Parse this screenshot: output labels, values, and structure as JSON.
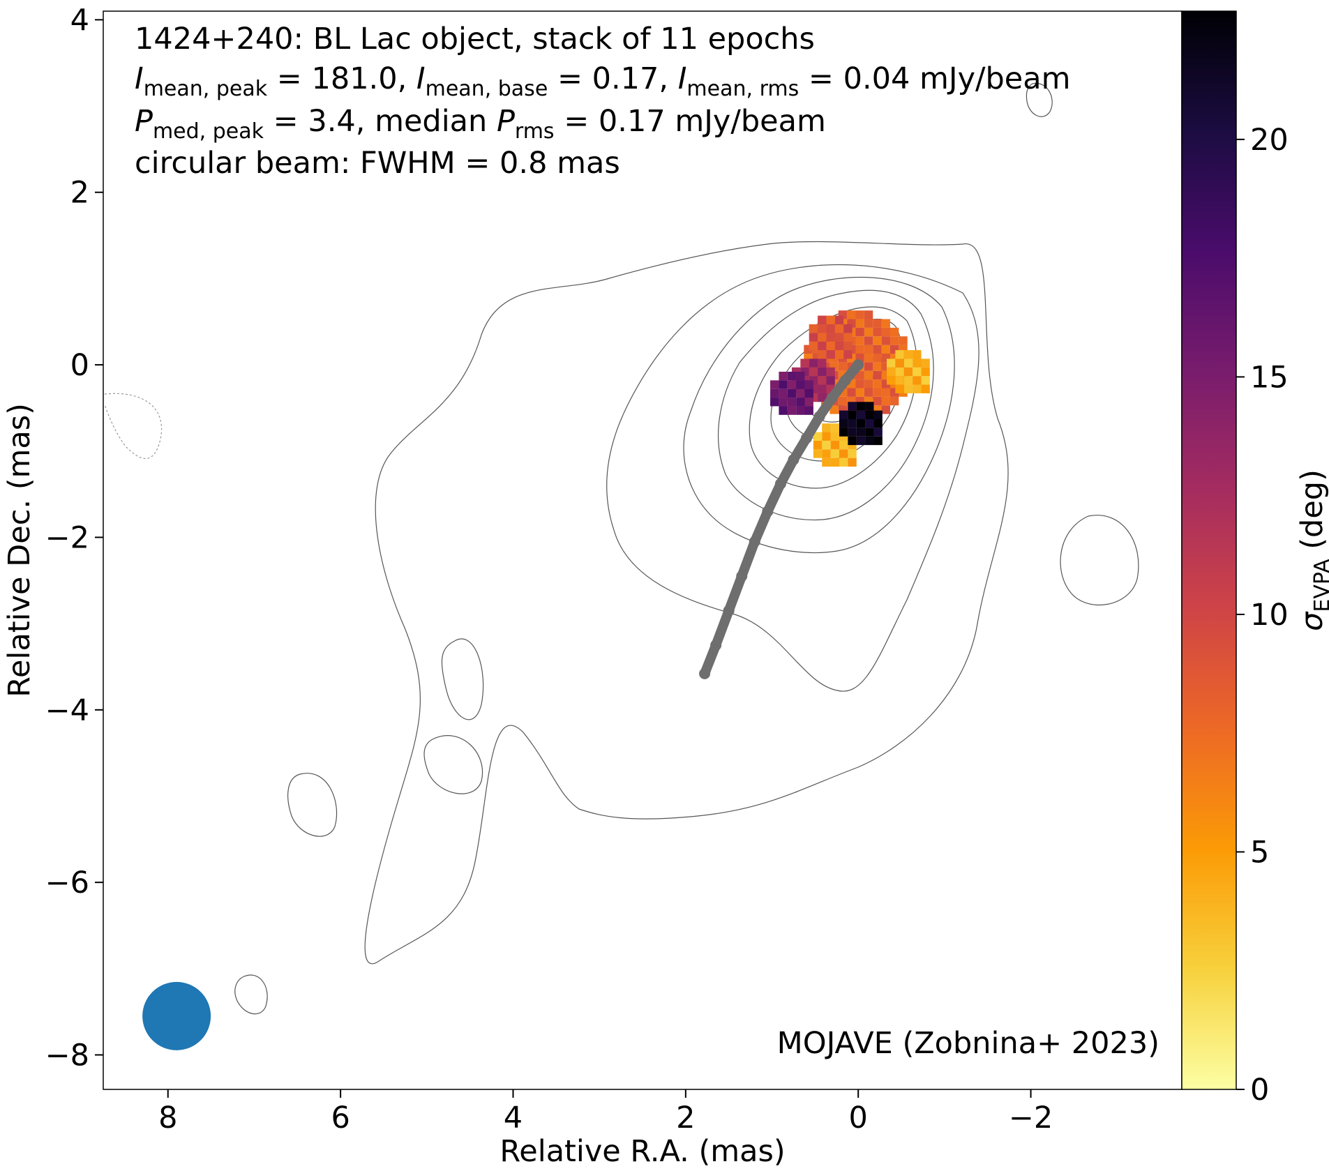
{
  "chart_data": {
    "type": "heatmap",
    "description_fields": {
      "title_lines": [
        "1424+240: BL Lac object, stack of 11 epochs",
        "I_mean,peak = 181.0, I_mean,base = 0.17, I_mean,rms = 0.04 mJy/beam",
        "P_med,peak = 3.4, median P_rms = 0.17 mJy/beam",
        "circular beam: FWHM = 0.8 mas"
      ]
    },
    "annotation_line1": {
      "source": "1424+240: BL Lac object, stack of 11 epochs"
    },
    "annotation_line2": {
      "i_sym": "I",
      "s1": "mean, peak",
      "v1": " = 181.0, ",
      "i_sym2": "I",
      "s2": "mean, base",
      "v2": " = 0.17, ",
      "i_sym3": "I",
      "s3": "mean, rms",
      "v3": " = 0.04 mJy/beam"
    },
    "annotation_line3": {
      "p_sym": "P",
      "s1": "med, peak",
      "v1": " = 3.4, median ",
      "p_sym2": "P",
      "s2": "rms",
      "v2": " = 0.17 mJy/beam"
    },
    "annotation_line4": "circular beam: FWHM = 0.8 mas",
    "credit": "MOJAVE (Zobnina+ 2023)",
    "xlabel": "Relative R.A. (mas)",
    "ylabel": "Relative Dec. (mas)",
    "xlim": [
      8.75,
      -3.75
    ],
    "ylim": [
      -8.4,
      4.1
    ],
    "x_ticks": [
      8,
      6,
      4,
      2,
      0,
      -2
    ],
    "x_tick_labels": [
      "8",
      "6",
      "4",
      "2",
      "0",
      "−2"
    ],
    "y_ticks": [
      4,
      2,
      0,
      -2,
      -4,
      -6,
      -8
    ],
    "y_tick_labels": [
      "4",
      "2",
      "0",
      "−2",
      "−4",
      "−6",
      "−8"
    ],
    "colorbar": {
      "label_symbol": "σ",
      "label_sub": "EVPA",
      "label_unit": " (deg)",
      "range": [
        0,
        22.7
      ],
      "ticks": [
        0,
        5,
        10,
        15,
        20
      ],
      "tick_labels": [
        "0",
        "5",
        "10",
        "15",
        "20"
      ],
      "colormap": "inferno_r",
      "stops": [
        "#fcffa4",
        "#f7d13d",
        "#fb9b06",
        "#ed6925",
        "#cf4446",
        "#a52c60",
        "#781c6d",
        "#4a0c6b",
        "#1b0c41",
        "#000004"
      ]
    },
    "beam": {
      "x": 7.9,
      "y": -7.55,
      "fwhm": 0.8,
      "color": "#1f77b4"
    },
    "ridge_line": {
      "color": "#6e6e6e",
      "points": [
        [
          0.0,
          0.0
        ],
        [
          0.15,
          -0.18
        ],
        [
          0.3,
          -0.38
        ],
        [
          0.45,
          -0.6
        ],
        [
          0.6,
          -0.85
        ],
        [
          0.75,
          -1.1
        ],
        [
          0.9,
          -1.38
        ],
        [
          1.05,
          -1.7
        ],
        [
          1.2,
          -2.05
        ],
        [
          1.35,
          -2.45
        ],
        [
          1.5,
          -2.85
        ],
        [
          1.65,
          -3.25
        ],
        [
          1.78,
          -3.58
        ]
      ]
    },
    "evpa_sigma_blobs": [
      {
        "x": 0.0,
        "y": 0.0,
        "value": 8
      },
      {
        "x": 0.3,
        "y": 0.3,
        "value": 9
      },
      {
        "x": 0.5,
        "y": -0.2,
        "value": 13
      },
      {
        "x": 0.75,
        "y": -0.35,
        "value": 16
      },
      {
        "x": 0.25,
        "y": -0.95,
        "value": 4
      },
      {
        "x": -0.6,
        "y": -0.1,
        "value": 4
      },
      {
        "x": -0.05,
        "y": -0.7,
        "value": 22
      }
    ]
  }
}
